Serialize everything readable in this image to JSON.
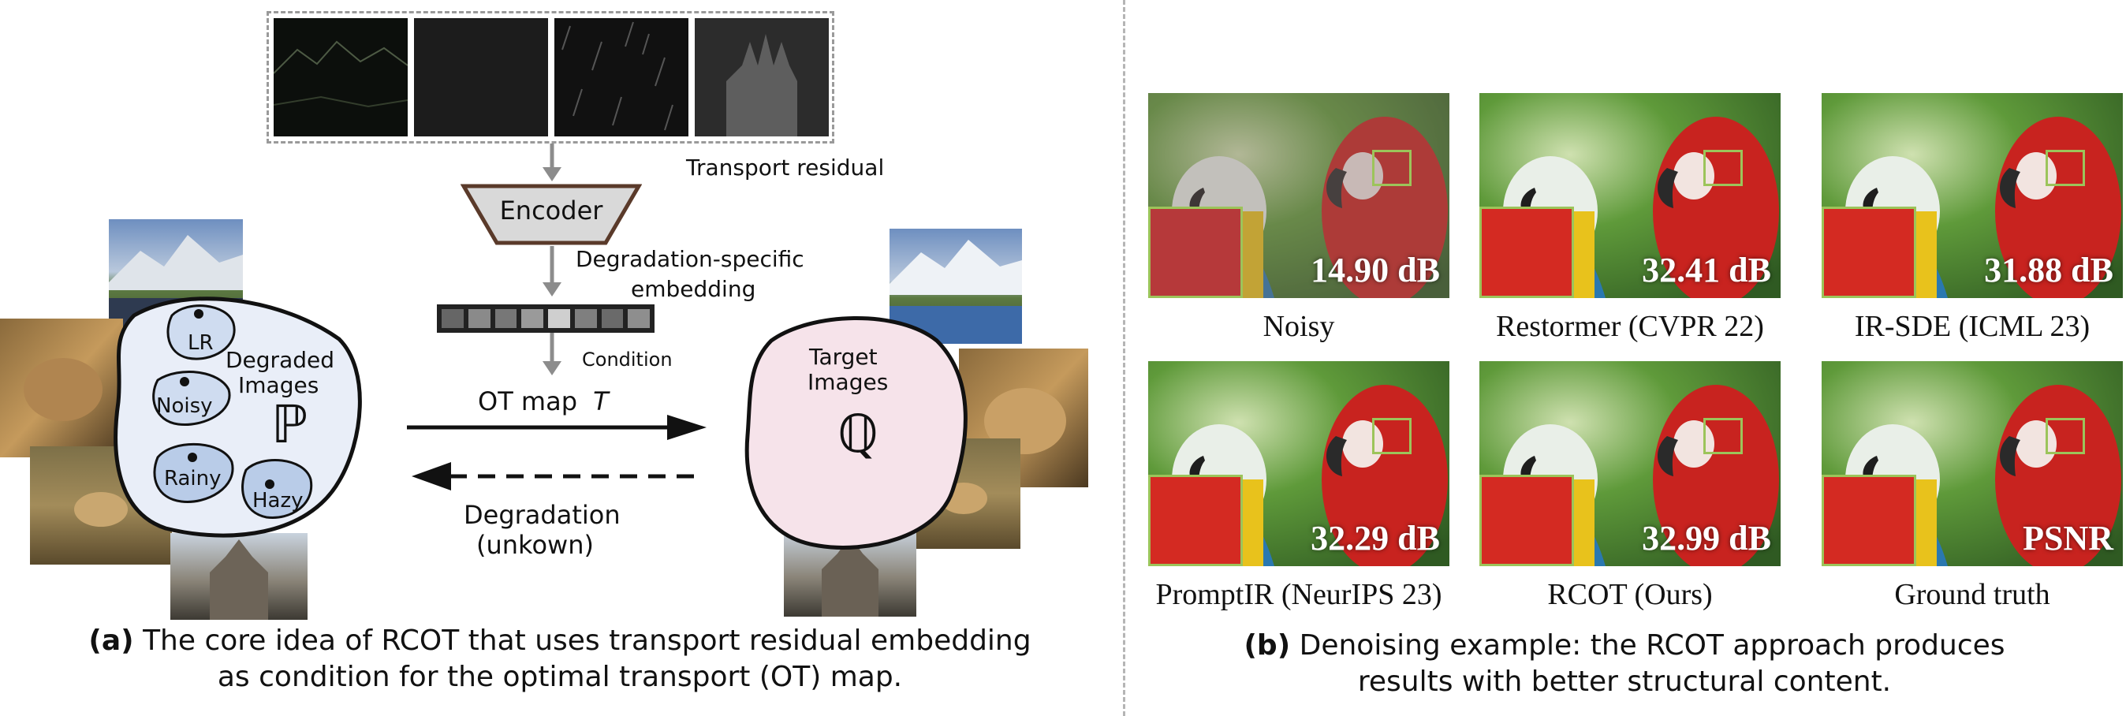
{
  "left_panel": {
    "transport_residual_label": "Transport residual",
    "encoder_label": "Encoder",
    "embedding_label_line1": "Degradation-specific",
    "embedding_label_line2": "embedding",
    "condition_label": "Condition",
    "ot_map_label": "OT map",
    "ot_map_symbol": "T",
    "degradation_label_line1": "Degradation",
    "degradation_label_line2": "(unkown)",
    "source_blob": {
      "title_line1": "Degraded",
      "title_line2": "Images",
      "symbol": "ℙ",
      "clusters": [
        "LR",
        "Noisy",
        "Rainy",
        "Hazy"
      ]
    },
    "target_blob": {
      "title_line1": "Target",
      "title_line2": "Images",
      "symbol": "ℚ"
    },
    "caption_prefix": "(a)",
    "caption_line1": "The core idea of RCOT that uses transport residual embedding",
    "caption_line2": "as condition for the optimal transport (OT) map."
  },
  "right_panel": {
    "results": [
      {
        "method": "Noisy",
        "psnr": "14.90 dB"
      },
      {
        "method": "Restormer (CVPR 22)",
        "psnr": "32.41 dB"
      },
      {
        "method": "IR-SDE (ICML 23)",
        "psnr": "31.88 dB"
      },
      {
        "method": "PromptIR (NeurIPS 23)",
        "psnr": "32.29 dB"
      },
      {
        "method": "RCOT (Ours)",
        "psnr": "32.99 dB"
      },
      {
        "method": "Ground truth",
        "psnr": "PSNR"
      }
    ],
    "caption_prefix": "(b)",
    "caption_line1": "Denoising example: the RCOT approach produces",
    "caption_line2": "results with better structural content."
  },
  "colors": {
    "source_blob_fill": "#e9eef8",
    "cluster_fill": "#cfdcf0",
    "target_blob_fill": "#f6e3ea",
    "encoder_fill": "#d9d9d9",
    "encoder_stroke": "#5a3a2a",
    "zoom_box": "#9cc45a",
    "arrow_gray": "#8c8c8c"
  }
}
